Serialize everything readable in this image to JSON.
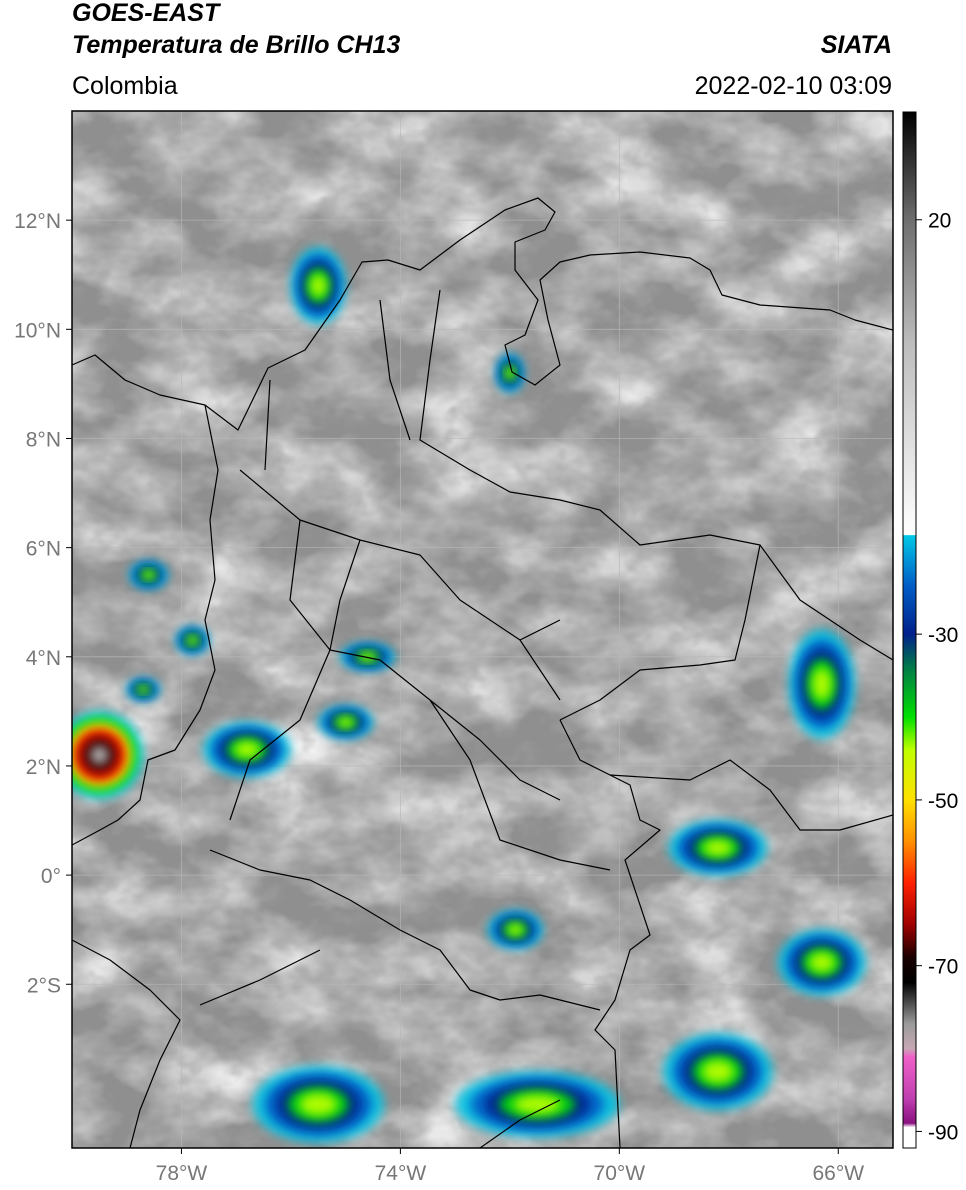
{
  "header": {
    "satellite": "GOES-EAST",
    "product": "Temperatura de Brillo CH13",
    "region": "Colombia",
    "source": "SIATA",
    "datetime": "2022-02-10 03:09"
  },
  "map": {
    "lon_range": [
      -80,
      -65
    ],
    "lat_range": [
      -5,
      14
    ],
    "lat_ticks": [
      {
        "value": 12,
        "label": "12°N"
      },
      {
        "value": 10,
        "label": "10°N"
      },
      {
        "value": 8,
        "label": "8°N"
      },
      {
        "value": 6,
        "label": "6°N"
      },
      {
        "value": 4,
        "label": "4°N"
      },
      {
        "value": 2,
        "label": "2°N"
      },
      {
        "value": 0,
        "label": "0°"
      },
      {
        "value": -2,
        "label": "2°S"
      }
    ],
    "lon_ticks": [
      {
        "value": -78,
        "label": "78°W"
      },
      {
        "value": -74,
        "label": "74°W"
      },
      {
        "value": -70,
        "label": "70°W"
      },
      {
        "value": -66,
        "label": "66°W"
      }
    ],
    "colors": {
      "background": "#8f8f8f",
      "grid": "#b8b8b8",
      "border": "#000000"
    }
  },
  "colorbar": {
    "range": [
      -92,
      33
    ],
    "ticks": [
      {
        "value": 20,
        "label": "20"
      },
      {
        "value": -30,
        "label": "-30"
      },
      {
        "value": -50,
        "label": "-50"
      },
      {
        "value": -70,
        "label": "-70"
      },
      {
        "value": -90,
        "label": "-90"
      }
    ],
    "stops": [
      {
        "value": 33,
        "color": "#000000"
      },
      {
        "value": 20,
        "color": "#6e6e6e"
      },
      {
        "value": 5,
        "color": "#bdbdbd"
      },
      {
        "value": -18,
        "color": "#ffffff"
      },
      {
        "value": -18.1,
        "color": "#00c8e6"
      },
      {
        "value": -24,
        "color": "#0060c8"
      },
      {
        "value": -30,
        "color": "#00208a"
      },
      {
        "value": -34,
        "color": "#007a4a"
      },
      {
        "value": -40,
        "color": "#00e000"
      },
      {
        "value": -44,
        "color": "#c0ff00"
      },
      {
        "value": -50,
        "color": "#ffe000"
      },
      {
        "value": -55,
        "color": "#ff9000"
      },
      {
        "value": -60,
        "color": "#ff2000"
      },
      {
        "value": -65,
        "color": "#a00000"
      },
      {
        "value": -69,
        "color": "#1a0000"
      },
      {
        "value": -72,
        "color": "#000000"
      },
      {
        "value": -77,
        "color": "#9a9a9a"
      },
      {
        "value": -80,
        "color": "#c8a8b4"
      },
      {
        "value": -81,
        "color": "#f060c8"
      },
      {
        "value": -86,
        "color": "#c040b0"
      },
      {
        "value": -89,
        "color": "#8a1080"
      },
      {
        "value": -89.5,
        "color": "#ffffff"
      },
      {
        "value": -92,
        "color": "#ffffff"
      }
    ]
  },
  "cloud_features": [
    {
      "kind": "cold",
      "lon": -79.5,
      "lat": 2.2,
      "rx": 0.8,
      "ry": 0.8
    },
    {
      "kind": "cold",
      "lon": -78.7,
      "lat": 3.4,
      "rx": 0.3,
      "ry": 0.2
    },
    {
      "kind": "cold",
      "lon": -78.6,
      "lat": 5.5,
      "rx": 0.35,
      "ry": 0.25
    },
    {
      "kind": "cold",
      "lon": -76.8,
      "lat": 2.3,
      "rx": 0.8,
      "ry": 0.5
    },
    {
      "kind": "cold",
      "lon": -77.8,
      "lat": 4.3,
      "rx": 0.3,
      "ry": 0.25
    },
    {
      "kind": "cold",
      "lon": -75.0,
      "lat": 2.8,
      "rx": 0.5,
      "ry": 0.3
    },
    {
      "kind": "cold",
      "lon": -74.6,
      "lat": 4.0,
      "rx": 0.5,
      "ry": 0.25
    },
    {
      "kind": "cold",
      "lon": -75.5,
      "lat": 10.8,
      "rx": 0.5,
      "ry": 0.7
    },
    {
      "kind": "cold",
      "lon": -72.0,
      "lat": 9.2,
      "rx": 0.25,
      "ry": 0.35
    },
    {
      "kind": "cold",
      "lon": -66.3,
      "lat": 3.5,
      "rx": 0.6,
      "ry": 1.0
    },
    {
      "kind": "cold",
      "lon": -68.2,
      "lat": 0.5,
      "rx": 0.9,
      "ry": 0.5
    },
    {
      "kind": "cold",
      "lon": -66.3,
      "lat": -1.6,
      "rx": 0.8,
      "ry": 0.6
    },
    {
      "kind": "cold",
      "lon": -75.5,
      "lat": -4.2,
      "rx": 1.2,
      "ry": 0.7
    },
    {
      "kind": "cold",
      "lon": -71.5,
      "lat": -4.2,
      "rx": 1.5,
      "ry": 0.6
    },
    {
      "kind": "cold",
      "lon": -68.2,
      "lat": -3.6,
      "rx": 1.0,
      "ry": 0.7
    },
    {
      "kind": "cold",
      "lon": -71.9,
      "lat": -1.0,
      "rx": 0.5,
      "ry": 0.35
    }
  ]
}
